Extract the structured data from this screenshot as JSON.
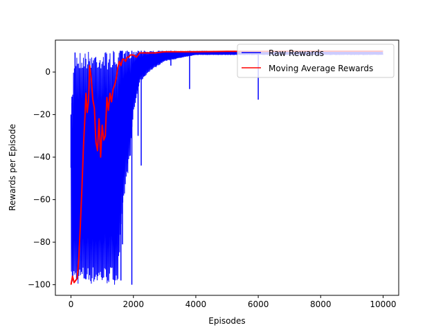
{
  "chart_data": {
    "type": "line",
    "title": "",
    "xlabel": "Episodes",
    "ylabel": "Rewards per Episode",
    "xlim": [
      -500,
      10500
    ],
    "ylim": [
      -105,
      15
    ],
    "xticks": [
      0,
      2000,
      4000,
      6000,
      8000,
      10000
    ],
    "yticks": [
      -100,
      -80,
      -60,
      -40,
      -20,
      0
    ],
    "xtick_labels": [
      "0",
      "2000",
      "4000",
      "6000",
      "8000",
      "10000"
    ],
    "ytick_labels": [
      "−100",
      "−80",
      "−60",
      "−40",
      "−20",
      "0"
    ],
    "grid": false,
    "legend": {
      "position": "upper-right",
      "entries": [
        "Raw Rewards",
        "Moving Average Rewards"
      ]
    },
    "series": [
      {
        "name": "Raw Rewards",
        "color": "#0000ff",
        "mode": "envelope",
        "x": [
          0,
          100,
          150,
          200,
          250,
          300,
          500,
          700,
          900,
          1100,
          1300,
          1500,
          1700,
          1900,
          2000,
          2200,
          2500,
          3000,
          4000,
          5000,
          6000,
          7000,
          8000,
          9000,
          10000
        ],
        "upper": [
          -20,
          8,
          10,
          10,
          10,
          10,
          10,
          10,
          10,
          10,
          10,
          10,
          10,
          10,
          10,
          10,
          10,
          10,
          10,
          10,
          10,
          10,
          10,
          10,
          10
        ],
        "lower": [
          -100,
          -100,
          -100,
          -100,
          -100,
          -100,
          -100,
          -100,
          -100,
          -100,
          -100,
          -100,
          -60,
          -40,
          -20,
          -5,
          0,
          5,
          8,
          8,
          8,
          8,
          8,
          8,
          8
        ],
        "spikes": [
          {
            "x": 0,
            "y": -45
          },
          {
            "x": 30,
            "y": -20
          },
          {
            "x": 130,
            "y": -35
          },
          {
            "x": 1600,
            "y": -98
          },
          {
            "x": 1650,
            "y": -81
          },
          {
            "x": 1800,
            "y": -43
          },
          {
            "x": 1950,
            "y": -100
          },
          {
            "x": 2150,
            "y": -30
          },
          {
            "x": 2250,
            "y": -44
          },
          {
            "x": 2350,
            "y": -2
          },
          {
            "x": 3200,
            "y": 3
          },
          {
            "x": 3800,
            "y": -8
          },
          {
            "x": 6000,
            "y": -13
          }
        ]
      },
      {
        "name": "Moving Average Rewards",
        "color": "#ff0000",
        "x": [
          0,
          50,
          100,
          150,
          200,
          250,
          300,
          350,
          400,
          450,
          480,
          520,
          560,
          600,
          650,
          700,
          750,
          800,
          850,
          900,
          950,
          1000,
          1050,
          1100,
          1150,
          1200,
          1250,
          1300,
          1350,
          1400,
          1450,
          1500,
          1550,
          1600,
          1650,
          1700,
          1750,
          1800,
          1850,
          1900,
          1950,
          2000,
          2100,
          2200,
          2300,
          2400,
          2500,
          2700,
          3000,
          3500,
          4000,
          5000,
          6000,
          7000,
          8000,
          9000,
          10000
        ],
        "y": [
          -100,
          -96,
          -99,
          -98,
          -97,
          -88,
          -72,
          -55,
          -35,
          -20,
          -10,
          -19,
          -14,
          3,
          -3,
          -13,
          -17,
          -33,
          -37,
          -22,
          -40,
          -25,
          -32,
          -30,
          -12,
          -18,
          -10,
          -14,
          -8,
          -6,
          -3,
          2,
          5,
          3,
          6,
          6,
          5,
          7,
          7,
          8,
          8,
          8,
          7,
          9,
          9,
          9,
          9,
          9,
          9.5,
          9.5,
          9.5,
          9.7,
          9.7,
          9.8,
          9.8,
          9.8,
          9.8
        ]
      }
    ]
  }
}
